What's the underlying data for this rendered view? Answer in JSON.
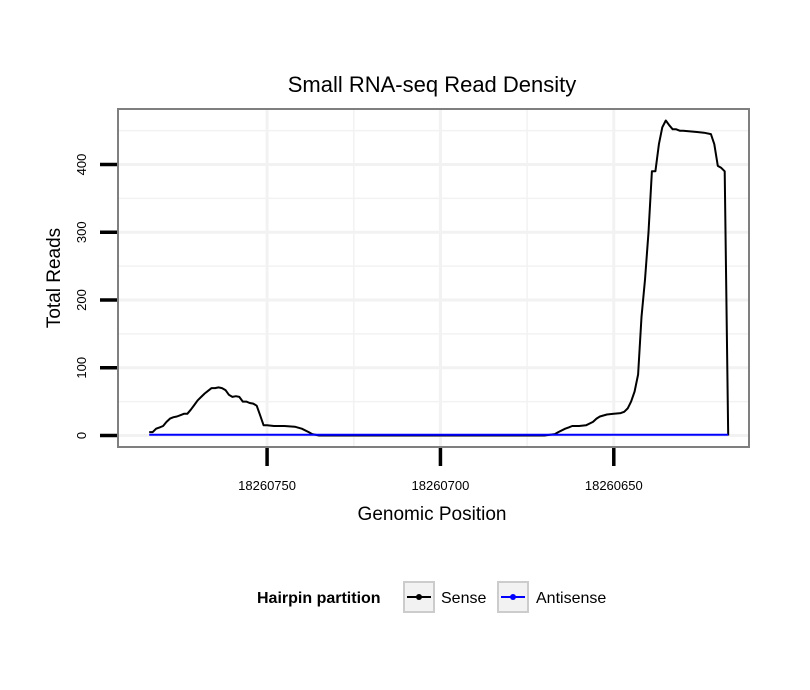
{
  "chart_data": {
    "type": "line",
    "title": "Small RNA-seq Read Density",
    "xlabel": "Genomic Position",
    "ylabel": "Total Reads",
    "x_reversed": true,
    "xlim": [
      18260611,
      18260793
    ],
    "ylim": [
      -17,
      482
    ],
    "x_ticks": [
      18260750,
      18260700,
      18260650
    ],
    "x_tick_labels": [
      "18260750",
      "18260700",
      "18260650"
    ],
    "y_ticks": [
      0,
      100,
      200,
      300,
      400
    ],
    "y_tick_labels": [
      "0",
      "100",
      "200",
      "300",
      "400"
    ],
    "grid": true,
    "legend": {
      "title": "Hairpin partition",
      "position": "bottom",
      "entries": [
        "Sense",
        "Antisense"
      ]
    },
    "colors": {
      "sense": "#000000",
      "antisense": "#0000ff",
      "panel_border": "#7f7f7f",
      "grid": "#f2f2f2"
    },
    "series": [
      {
        "name": "Sense",
        "color": "#000000",
        "x": [
          18260784,
          18260783,
          18260782,
          18260781,
          18260780,
          18260779,
          18260778,
          18260777,
          18260776,
          18260775,
          18260774,
          18260773,
          18260772,
          18260771,
          18260770,
          18260769,
          18260768,
          18260767,
          18260766,
          18260765,
          18260764,
          18260763,
          18260762,
          18260761,
          18260760,
          18260759,
          18260758,
          18260757,
          18260756,
          18260755,
          18260754,
          18260753,
          18260752,
          18260751,
          18260750,
          18260748,
          18260745,
          18260742,
          18260740,
          18260738,
          18260737,
          18260735,
          18260733,
          18260731,
          18260720,
          18260700,
          18260680,
          18260670,
          18260667,
          18260666,
          18260664,
          18260663,
          18260662,
          18260660,
          18260658,
          18260656,
          18260655,
          18260654,
          18260652,
          18260650,
          18260648,
          18260647,
          18260646,
          18260645,
          18260644,
          18260643,
          18260642,
          18260641,
          18260640,
          18260639,
          18260638,
          18260637,
          18260636,
          18260635,
          18260634,
          18260633,
          18260632,
          18260631,
          18260630,
          18260628,
          18260626,
          18260624,
          18260622,
          18260621,
          18260620,
          18260619,
          18260618,
          18260617
        ],
        "values": [
          5,
          5,
          10,
          12,
          14,
          20,
          25,
          27,
          28,
          30,
          32,
          32,
          38,
          45,
          52,
          57,
          62,
          66,
          70,
          70,
          71,
          70,
          67,
          60,
          57,
          58,
          57,
          50,
          50,
          48,
          47,
          44,
          30,
          15,
          15,
          14,
          14,
          13,
          10,
          5,
          2,
          0,
          0,
          0,
          0,
          0,
          0,
          0,
          2,
          5,
          10,
          12,
          14,
          14,
          15,
          20,
          25,
          28,
          31,
          32,
          33,
          35,
          40,
          50,
          65,
          90,
          175,
          230,
          300,
          390,
          390,
          430,
          455,
          465,
          458,
          452,
          452,
          450,
          450,
          449,
          448,
          447,
          445,
          430,
          398,
          395,
          390,
          0
        ]
      },
      {
        "name": "Antisense",
        "color": "#0000ff",
        "x": [
          18260784,
          18260617
        ],
        "values": [
          1,
          1
        ]
      }
    ]
  }
}
